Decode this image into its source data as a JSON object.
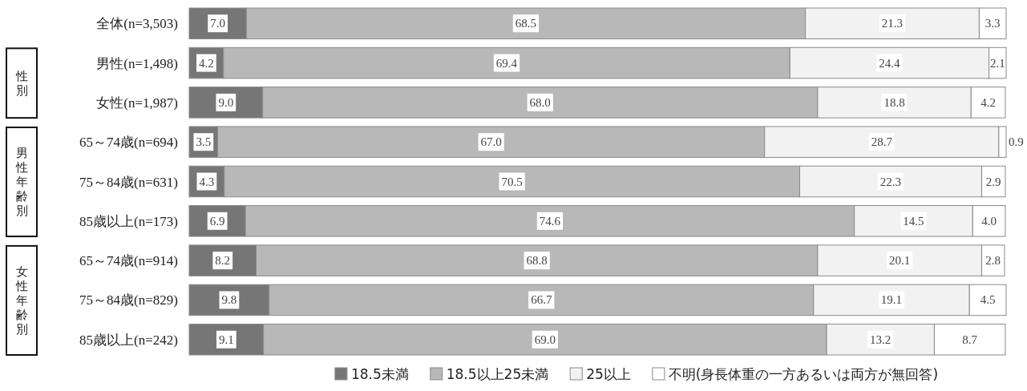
{
  "chart_data": {
    "type": "bar",
    "orientation": "horizontal",
    "stacked": true,
    "categories": [
      "全体(n=3,503)",
      "男性(n=1,498)",
      "女性(n=1,987)",
      "65～74歳(n=694)",
      "75～84歳(n=631)",
      "85歳以上(n=173)",
      "65～74歳(n=914)",
      "75～84歳(n=829)",
      "85歳以上(n=242)"
    ],
    "series": [
      {
        "name": "18.5未満",
        "color": "#767676",
        "values": [
          7.0,
          4.2,
          9.0,
          3.5,
          4.3,
          6.9,
          8.2,
          9.8,
          9.1
        ],
        "value_labels": [
          "7.0",
          "4.2",
          "9.0",
          "3.5",
          "4.3",
          "6.9",
          "8.2",
          "9.8",
          "9.1"
        ]
      },
      {
        "name": "18.5以上25未満",
        "color": "#b8b8b8",
        "values": [
          68.5,
          69.4,
          68.0,
          67.0,
          70.5,
          74.6,
          68.8,
          66.7,
          69.0
        ],
        "value_labels": [
          "68.5",
          "69.4",
          "68.0",
          "67.0",
          "70.5",
          "74.6",
          "68.8",
          "66.7",
          "69.0"
        ]
      },
      {
        "name": "25以上",
        "color": "#f2f2f2",
        "values": [
          21.3,
          24.4,
          18.8,
          28.7,
          22.3,
          14.5,
          20.1,
          19.1,
          13.2
        ],
        "value_labels": [
          "21.3",
          "24.4",
          "18.8",
          "28.7",
          "22.3",
          "14.5",
          "20.1",
          "19.1",
          "13.2"
        ]
      },
      {
        "name": "不明(身長体重の一方あるいは両方が無回答)",
        "color": "#ffffff",
        "values": [
          3.3,
          2.1,
          4.2,
          0.9,
          2.9,
          4.0,
          2.8,
          4.5,
          8.7
        ],
        "value_labels": [
          "3.3",
          "2.1",
          "4.2",
          "0.9",
          "2.9",
          "4.0",
          "2.8",
          "4.5",
          "8.7"
        ]
      }
    ],
    "legend": "bottom",
    "annotations": [
      "性別",
      "男性年齢別",
      "女性年齢別"
    ]
  }
}
